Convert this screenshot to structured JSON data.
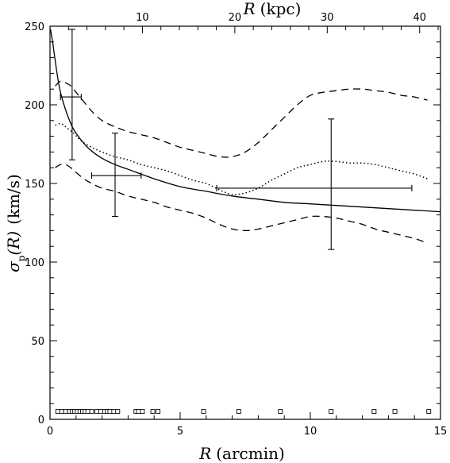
{
  "chart_data": {
    "type": "line",
    "xlabel_var": "R",
    "xlabel_unit": "(arcmin)",
    "x2label_var": "R",
    "x2label_unit": "(kpc)",
    "ylabel_var": "σ",
    "ylabel_sub": "p",
    "ylabel_arg": "(R)",
    "ylabel_unit": "(km/s)",
    "xlim": [
      0,
      15
    ],
    "ylim": [
      0,
      250
    ],
    "x_ticks": [
      0,
      5,
      10,
      15
    ],
    "y_ticks": [
      0,
      50,
      100,
      150,
      200,
      250
    ],
    "x2_ticks": [
      {
        "label": "10",
        "x": 3.55
      },
      {
        "label": "20",
        "x": 7.1
      },
      {
        "label": "30",
        "x": 10.65
      },
      {
        "label": "40",
        "x": 14.2
      }
    ],
    "series": [
      {
        "style": "solid",
        "x": [
          0.02,
          0.1,
          0.2,
          0.35,
          0.5,
          0.75,
          1.0,
          1.5,
          2.0,
          2.5,
          3.0,
          4.0,
          5.0,
          6.0,
          7.0,
          8.0,
          9.0,
          10.0,
          11.0,
          12.0,
          13.0,
          14.0,
          15.0
        ],
        "y": [
          248,
          240,
          228,
          212,
          202,
          190,
          182,
          172,
          166,
          162,
          159,
          153,
          148,
          145,
          142,
          140,
          138,
          137,
          136,
          135,
          134,
          133,
          132
        ]
      },
      {
        "style": "dotted",
        "x": [
          0.2,
          0.4,
          0.6,
          0.9,
          1.2,
          1.6,
          2.0,
          2.5,
          3.0,
          3.5,
          4.0,
          4.5,
          5.0,
          5.5,
          6.0,
          6.5,
          7.0,
          7.5,
          8.0,
          8.5,
          9.0,
          9.5,
          10.0,
          10.5,
          11.0,
          11.5,
          12.0,
          12.5,
          13.0,
          13.5,
          14.0,
          14.5
        ],
        "y": [
          187,
          188,
          186,
          182,
          177,
          173,
          170,
          167,
          165,
          162,
          160,
          158,
          155,
          152,
          150,
          146,
          143,
          144,
          147,
          152,
          156,
          160,
          162,
          164,
          164,
          163,
          163,
          162,
          160,
          158,
          156,
          153
        ]
      },
      {
        "style": "dashed",
        "x": [
          0.2,
          0.4,
          0.6,
          0.8,
          1.0,
          1.3,
          1.6,
          2.0,
          2.5,
          3.0,
          3.5,
          4.0,
          4.5,
          5.0,
          5.5,
          6.0,
          6.5,
          7.0,
          7.5,
          8.0,
          8.5,
          9.0,
          9.5,
          10.0,
          10.5,
          11.0,
          11.5,
          12.0,
          12.5,
          13.0,
          13.5,
          14.0,
          14.5
        ],
        "y": [
          212,
          215,
          214,
          212,
          208,
          202,
          196,
          190,
          186,
          183,
          181,
          179,
          176,
          173,
          171,
          169,
          167,
          167,
          170,
          176,
          184,
          192,
          200,
          206,
          208,
          209,
          210,
          210,
          209,
          208,
          206,
          205,
          203
        ]
      },
      {
        "style": "dashed",
        "x": [
          0.2,
          0.4,
          0.6,
          0.8,
          1.0,
          1.3,
          1.6,
          2.0,
          2.5,
          3.0,
          3.5,
          4.0,
          4.5,
          5.0,
          5.5,
          6.0,
          6.5,
          7.0,
          7.5,
          8.0,
          8.5,
          9.0,
          9.5,
          10.0,
          10.5,
          11.0,
          11.5,
          12.0,
          12.5,
          13.0,
          13.5,
          14.0,
          14.5
        ],
        "y": [
          160,
          162,
          162,
          160,
          157,
          153,
          150,
          147,
          145,
          142,
          140,
          138,
          135,
          133,
          131,
          128,
          124,
          121,
          120,
          121,
          123,
          125,
          127,
          129,
          129,
          128,
          126,
          124,
          121,
          119,
          117,
          115,
          112
        ]
      }
    ],
    "errorbars": [
      {
        "x": 0.85,
        "y": 205,
        "xerr": [
          0.4,
          1.2
        ],
        "yerr": [
          165,
          248
        ]
      },
      {
        "x": 2.5,
        "y": 155,
        "xerr": [
          1.6,
          3.5
        ],
        "yerr": [
          129,
          182
        ]
      },
      {
        "x": 10.8,
        "y": 147,
        "xerr": [
          6.4,
          13.9
        ],
        "yerr": [
          108,
          191
        ]
      }
    ],
    "markers": {
      "shape": "open-square",
      "y": 5,
      "x": [
        0.3,
        0.45,
        0.6,
        0.75,
        0.85,
        0.95,
        1.05,
        1.15,
        1.25,
        1.35,
        1.45,
        1.6,
        1.8,
        1.95,
        2.1,
        2.2,
        2.3,
        2.45,
        2.6,
        3.3,
        3.4,
        3.55,
        3.95,
        4.15,
        5.9,
        7.25,
        8.85,
        10.8,
        12.45,
        13.25,
        14.55
      ]
    }
  }
}
